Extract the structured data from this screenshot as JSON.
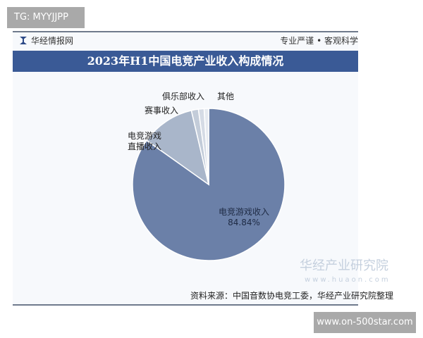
{
  "overlay_top": "TG: MYYJJPP",
  "overlay_bottom": "www.on-500star.com",
  "header": {
    "brand": "华经情报网",
    "slogan": "专业严谨 • 客观科学"
  },
  "watermark": {
    "name": "华经产业研究院",
    "url": "www.huaon.com"
  },
  "source": "资料来源：中国音数协电竞工委，华经产业研究院整理",
  "chart_data": {
    "type": "pie",
    "title": "2023年H1中国电竞产业收入构成情况",
    "start": "top",
    "direction": "clockwise",
    "slices": [
      {
        "label": "电竞游戏收入",
        "value": 84.84,
        "value_label": "84.84%",
        "color": "#6b80a8"
      },
      {
        "label": "电竞游戏直播收入",
        "value": 11.5,
        "color": "#a9b6ca"
      },
      {
        "label": "赛事收入",
        "value": 1.5,
        "color": "#c3ccd9"
      },
      {
        "label": "俱乐部收入",
        "value": 1.2,
        "color": "#d5dbe5"
      },
      {
        "label": "其他",
        "value": 0.96,
        "color": "#e6eaf0"
      }
    ]
  }
}
